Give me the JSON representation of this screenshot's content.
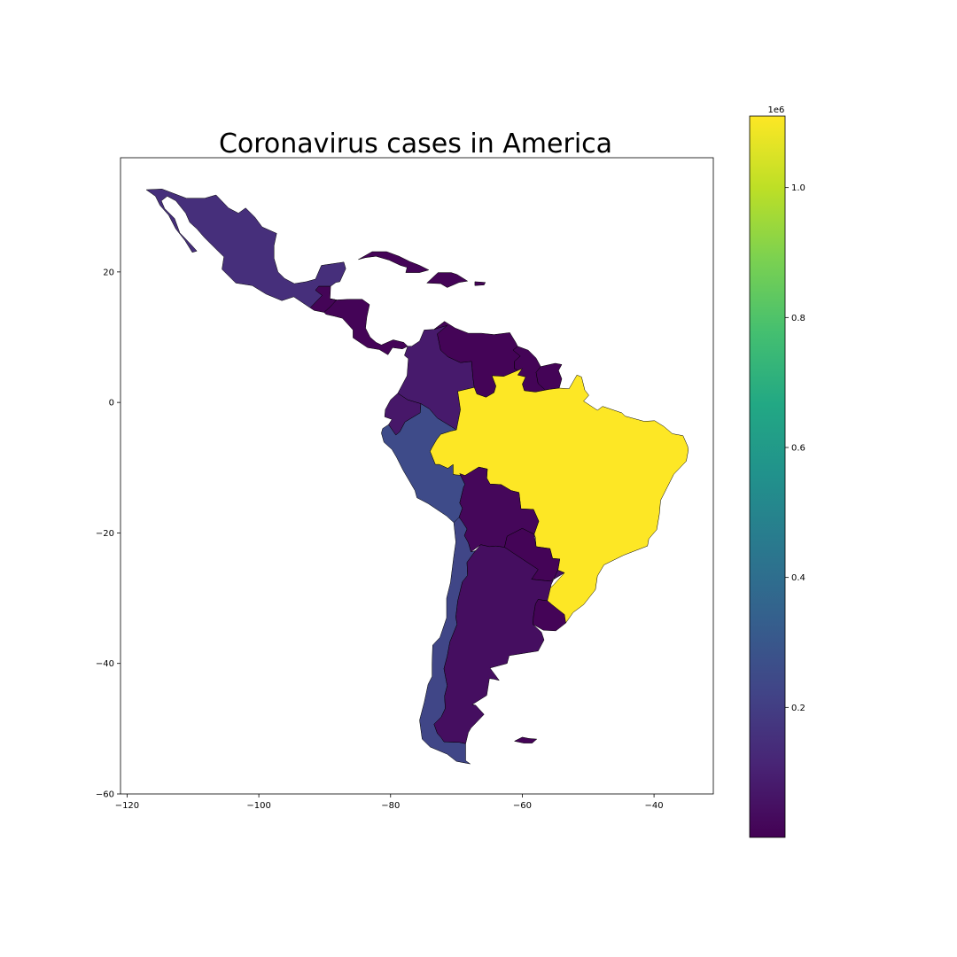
{
  "chart_data": {
    "type": "choropleth",
    "title": "Coronavirus cases in America",
    "xlim": [
      -121,
      -31
    ],
    "ylim": [
      -60,
      37.5
    ],
    "x_ticks": [
      -120,
      -100,
      -80,
      -60,
      -40
    ],
    "y_ticks": [
      20,
      0,
      -20,
      -40,
      -60
    ],
    "colorbar": {
      "colormap": "viridis",
      "range": [
        0,
        1.11
      ],
      "exponent_label": "1e6",
      "ticks": [
        0.2,
        0.4,
        0.6,
        0.8,
        1.0
      ]
    },
    "regions": [
      {
        "name": "Mexico",
        "value": 0.15
      },
      {
        "name": "Guatemala",
        "value": 0.01
      },
      {
        "name": "Central America",
        "value": 0.01
      },
      {
        "name": "Cuba",
        "value": 0.01
      },
      {
        "name": "Hispaniola",
        "value": 0.01
      },
      {
        "name": "Puerto Rico",
        "value": 0.01
      },
      {
        "name": "Colombia",
        "value": 0.08
      },
      {
        "name": "Venezuela",
        "value": 0.01
      },
      {
        "name": "Guyana",
        "value": 0.01
      },
      {
        "name": "Suriname",
        "value": 0.01
      },
      {
        "name": "Ecuador",
        "value": 0.07
      },
      {
        "name": "Peru",
        "value": 0.25
      },
      {
        "name": "Brazil",
        "value": 1.11
      },
      {
        "name": "Bolivia",
        "value": 0.02
      },
      {
        "name": "Paraguay",
        "value": 0.01
      },
      {
        "name": "Chile",
        "value": 0.23
      },
      {
        "name": "Argentina",
        "value": 0.04
      },
      {
        "name": "Uruguay",
        "value": 0.01
      },
      {
        "name": "Falkland Islands",
        "value": 0.01
      }
    ]
  }
}
